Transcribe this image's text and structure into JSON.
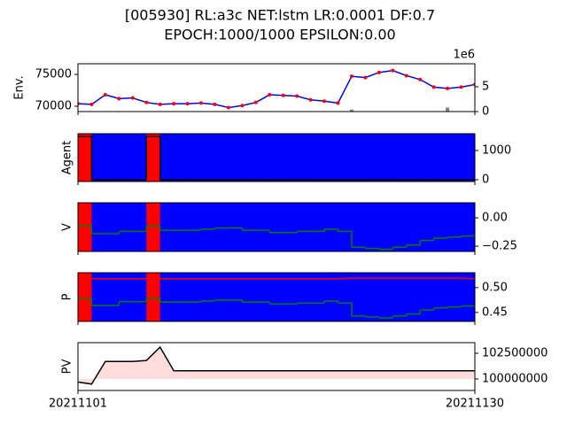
{
  "figure": {
    "title": [
      "[005930] RL:a3c NET:lstm LR:0.0001 DF:0.7",
      "EPOCH:1000/1000 EPSILON:0.00"
    ]
  },
  "chart_data": [
    {
      "type": "line",
      "ylabel": "Env.",
      "y_axis_side": "left",
      "xtick_labels": false,
      "x": [
        "20211101",
        "20211102",
        "20211103",
        "20211104",
        "20211105",
        "20211106",
        "20211107",
        "20211108",
        "20211109",
        "20211110",
        "20211111",
        "20211112",
        "20211113",
        "20211114",
        "20211115",
        "20211116",
        "20211117",
        "20211118",
        "20211119",
        "20211120",
        "20211121",
        "20211122",
        "20211123",
        "20211124",
        "20211125",
        "20211126",
        "20211127",
        "20211128",
        "20211129",
        "20211130"
      ],
      "xlim": [
        "20211101",
        "20211130"
      ],
      "xticks": [
        "20211101",
        "20211130"
      ],
      "ylim": [
        69167,
        76667
      ],
      "yticks": [
        70000,
        75000
      ],
      "y2lim": [
        0,
        9.64
      ],
      "y2ticks": [
        0,
        5
      ],
      "y2_offset_label": "1e6",
      "series": [
        {
          "color": "#0000ff",
          "marker": "#ff0000",
          "values": [
            70400,
            70300,
            71800,
            71200,
            71300,
            70600,
            70300,
            70400,
            70400,
            70500,
            70300,
            69800,
            70100,
            70600,
            71800,
            71700,
            71600,
            71000,
            70800,
            70500,
            74700,
            74500,
            75300,
            75600,
            74800,
            74200,
            73000,
            72800,
            73000,
            73400
          ]
        },
        {
          "kind": "bar",
          "axis": "y2",
          "color": "#7f7f7f",
          "values": [
            0.1,
            0.1,
            0.1,
            0.1,
            0.1,
            0.1,
            0.1,
            0.1,
            0.1,
            0.1,
            0.1,
            0.1,
            0.1,
            0.1,
            0.1,
            0.1,
            0.1,
            0.1,
            0.1,
            0.1,
            0.4,
            0.1,
            0.1,
            0.1,
            0.1,
            0.1,
            0.1,
            0.8,
            0.1,
            0.1
          ]
        }
      ]
    },
    {
      "type": "line",
      "ylabel": "Agent",
      "y_axis_side": "right",
      "xtick_labels": false,
      "background": "#0000ff",
      "spans": [
        {
          "start": "20211101",
          "end": "20211102",
          "color": "#ff0000"
        },
        {
          "start": "20211106",
          "end": "20211107",
          "color": "#ff0000"
        }
      ],
      "x": [
        "20211101",
        "20211102",
        "20211103",
        "20211104",
        "20211105",
        "20211106",
        "20211107",
        "20211108",
        "20211109",
        "20211110",
        "20211111",
        "20211112",
        "20211113",
        "20211114",
        "20211115",
        "20211116",
        "20211117",
        "20211118",
        "20211119",
        "20211120",
        "20211121",
        "20211122",
        "20211123",
        "20211124",
        "20211125",
        "20211126",
        "20211127",
        "20211128",
        "20211129",
        "20211130"
      ],
      "xlim": [
        "20211101",
        "20211130"
      ],
      "xticks": [
        "20211101",
        "20211130"
      ],
      "ylim": [
        -61,
        1576
      ],
      "yticks": [
        0,
        1000
      ],
      "series": [
        {
          "color": "#000000",
          "step": true,
          "values": [
            1480,
            0,
            0,
            0,
            0,
            1480,
            0,
            0,
            0,
            0,
            0,
            0,
            0,
            0,
            0,
            0,
            0,
            0,
            0,
            0,
            0,
            0,
            0,
            0,
            0,
            0,
            0,
            0,
            0,
            0
          ]
        }
      ]
    },
    {
      "type": "line",
      "ylabel": "V",
      "y_axis_side": "right",
      "xtick_labels": false,
      "background": "#0000ff",
      "spans": [
        {
          "start": "20211101",
          "end": "20211102",
          "color": "#ff0000"
        },
        {
          "start": "20211106",
          "end": "20211107",
          "color": "#ff0000"
        }
      ],
      "x": [
        "20211101",
        "20211102",
        "20211103",
        "20211104",
        "20211105",
        "20211106",
        "20211107",
        "20211108",
        "20211109",
        "20211110",
        "20211111",
        "20211112",
        "20211113",
        "20211114",
        "20211115",
        "20211116",
        "20211117",
        "20211118",
        "20211119",
        "20211120",
        "20211121",
        "20211122",
        "20211123",
        "20211124",
        "20211125",
        "20211126",
        "20211127",
        "20211128",
        "20211129",
        "20211130"
      ],
      "xlim": [
        "20211101",
        "20211130"
      ],
      "xticks": [
        "20211101",
        "20211130"
      ],
      "ylim": [
        -0.297,
        0.133
      ],
      "yticks": [
        {
          "value": 0,
          "label": "0.00"
        },
        {
          "value": -0.25,
          "label": "−0.25"
        }
      ],
      "series": [
        {
          "color": "#008000",
          "step": true,
          "values": [
            -0.07,
            -0.14,
            -0.14,
            -0.12,
            -0.12,
            -0.07,
            -0.11,
            -0.11,
            -0.11,
            -0.1,
            -0.09,
            -0.09,
            -0.11,
            -0.11,
            -0.13,
            -0.13,
            -0.12,
            -0.12,
            -0.1,
            -0.12,
            -0.26,
            -0.27,
            -0.28,
            -0.26,
            -0.24,
            -0.2,
            -0.18,
            -0.17,
            -0.16,
            -0.14
          ]
        }
      ]
    },
    {
      "type": "line",
      "ylabel": "P",
      "y_axis_side": "right",
      "xtick_labels": false,
      "background": "#0000ff",
      "spans": [
        {
          "start": "20211101",
          "end": "20211102",
          "color": "#ff0000"
        },
        {
          "start": "20211106",
          "end": "20211107",
          "color": "#ff0000"
        }
      ],
      "x": [
        "20211101",
        "20211102",
        "20211103",
        "20211104",
        "20211105",
        "20211106",
        "20211107",
        "20211108",
        "20211109",
        "20211110",
        "20211111",
        "20211112",
        "20211113",
        "20211114",
        "20211115",
        "20211116",
        "20211117",
        "20211118",
        "20211119",
        "20211120",
        "20211121",
        "20211122",
        "20211123",
        "20211124",
        "20211125",
        "20211126",
        "20211127",
        "20211128",
        "20211129",
        "20211130"
      ],
      "xlim": [
        "20211101",
        "20211130"
      ],
      "xticks": [
        "20211101",
        "20211130"
      ],
      "ylim": [
        0.432,
        0.53
      ],
      "yticks": [
        {
          "value": 0.5,
          "label": "0.50"
        },
        0.45
      ],
      "series": [
        {
          "color": "#ff0000",
          "values": [
            0.518,
            0.518,
            0.518,
            0.518,
            0.518,
            0.518,
            0.518,
            0.518,
            0.518,
            0.518,
            0.518,
            0.518,
            0.518,
            0.518,
            0.518,
            0.518,
            0.518,
            0.518,
            0.518,
            0.518,
            0.519,
            0.519,
            0.519,
            0.519,
            0.519,
            0.519,
            0.519,
            0.519,
            0.519,
            0.518
          ]
        },
        {
          "color": "#008000",
          "step": true,
          "values": [
            0.479,
            0.464,
            0.464,
            0.472,
            0.472,
            0.479,
            0.471,
            0.471,
            0.471,
            0.473,
            0.475,
            0.475,
            0.471,
            0.471,
            0.467,
            0.467,
            0.469,
            0.469,
            0.473,
            0.469,
            0.443,
            0.441,
            0.439,
            0.443,
            0.447,
            0.455,
            0.459,
            0.461,
            0.463,
            0.467
          ]
        }
      ]
    },
    {
      "type": "line",
      "ylabel": "PV",
      "y_axis_side": "right",
      "xtick_labels": true,
      "x": [
        "20211101",
        "20211102",
        "20211103",
        "20211104",
        "20211105",
        "20211106",
        "20211107",
        "20211108",
        "20211109",
        "20211110",
        "20211111",
        "20211112",
        "20211113",
        "20211114",
        "20211115",
        "20211116",
        "20211117",
        "20211118",
        "20211119",
        "20211120",
        "20211121",
        "20211122",
        "20211123",
        "20211124",
        "20211125",
        "20211126",
        "20211127",
        "20211128",
        "20211129",
        "20211130"
      ],
      "xlim": [
        "20211101",
        "20211130"
      ],
      "xticks": [
        "20211101",
        "20211130"
      ],
      "ylim": [
        98879310,
        103534483
      ],
      "yticks": [
        100000000,
        102500000
      ],
      "fill": {
        "color": "#ffdddd",
        "baseline": 100000000
      },
      "series": [
        {
          "color": "#000000",
          "values": [
            99700000,
            99500000,
            101700000,
            101700000,
            101700000,
            101800000,
            103100000,
            100800000,
            100800000,
            100800000,
            100800000,
            100800000,
            100800000,
            100800000,
            100800000,
            100800000,
            100800000,
            100800000,
            100800000,
            100800000,
            100800000,
            100800000,
            100800000,
            100800000,
            100800000,
            100800000,
            100800000,
            100800000,
            100800000,
            100800000
          ]
        }
      ]
    }
  ]
}
